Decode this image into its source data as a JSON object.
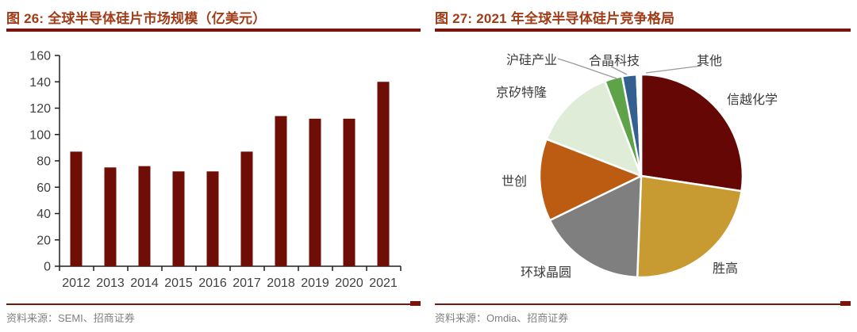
{
  "figure26": {
    "title": "图 26: 全球半导体硅片市场规模（亿美元）",
    "source": "资料来源：SEMI、招商证券"
  },
  "figure27": {
    "title": "图 27: 2021 年全球半导体硅片竞争格局",
    "source": "资料来源：Omdia、招商证券"
  },
  "chart_data": [
    {
      "type": "bar",
      "title": "全球半导体硅片市场规模（亿美元）",
      "categories": [
        "2012",
        "2013",
        "2014",
        "2015",
        "2016",
        "2017",
        "2018",
        "2019",
        "2020",
        "2021"
      ],
      "values": [
        87,
        75,
        76,
        72,
        72,
        87,
        114,
        112,
        112,
        140
      ],
      "xlabel": "",
      "ylabel": "",
      "ylim": [
        0,
        160
      ],
      "ytick_step": 20,
      "grid": false,
      "bar_color": "#6E0E07"
    },
    {
      "type": "pie",
      "title": "2021 年全球半导体硅片竞争格局",
      "labels": [
        "信越化学",
        "胜高",
        "环球晶圆",
        "世创",
        "京矽特隆",
        "沪硅产业",
        "合晶科技",
        "其他"
      ],
      "values_pct_estimated": [
        27.4,
        23.2,
        17.2,
        13.1,
        13.3,
        2.8,
        2.3,
        0.7
      ],
      "colors": [
        "#650805",
        "#C79B31",
        "#7F7F7F",
        "#BC5C13",
        "#DFECD8",
        "#5FA348",
        "#33608F",
        "#FFFFFF"
      ],
      "start_angle": "12-o-clock",
      "direction": "clockwise",
      "legend_position": "labels-around-pie"
    }
  ],
  "theme": {
    "title_color": "#A03C17",
    "rule_color": "#7A150C",
    "source_color": "#7F7F7F",
    "axis_text_color": "#3F3F3F",
    "axis_line_color": "#1F1F1F",
    "pie_label_color": "#3A3A3A",
    "leader_line_color": "#999999"
  }
}
